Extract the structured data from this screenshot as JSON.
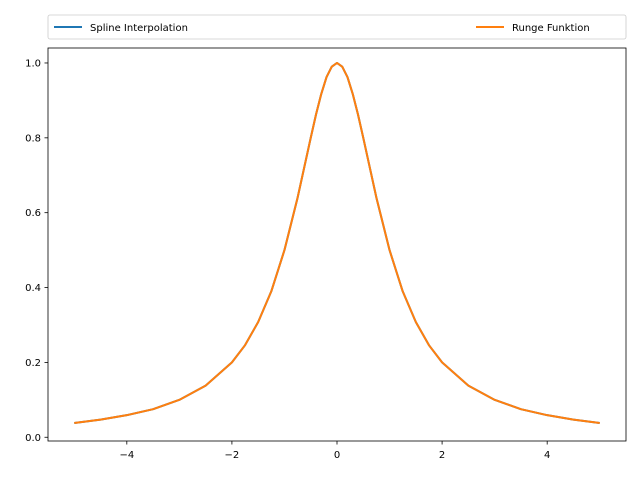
{
  "chart_data": {
    "type": "line",
    "title": "",
    "xlabel": "",
    "ylabel": "",
    "xlim": [
      -5.5,
      5.5
    ],
    "ylim": [
      -0.0,
      1.05
    ],
    "xticks": [
      -4,
      -2,
      0,
      2,
      4
    ],
    "yticks": [
      0.0,
      0.2,
      0.4,
      0.6,
      0.8,
      1.0
    ],
    "xtick_labels": [
      "−4",
      "−2",
      "0",
      "2",
      "4"
    ],
    "ytick_labels": [
      "0.0",
      "0.2",
      "0.4",
      "0.6",
      "0.8",
      "1.0"
    ],
    "grid": false,
    "legend": {
      "placement": "above-plot, expanded across width",
      "entries": [
        "Spline Interpolation",
        "Runge Funktion"
      ]
    },
    "x": [
      -5.0,
      -4.5,
      -4.0,
      -3.5,
      -3.0,
      -2.5,
      -2.0,
      -1.75,
      -1.5,
      -1.25,
      -1.0,
      -0.75,
      -0.5,
      -0.4,
      -0.3,
      -0.2,
      -0.1,
      0.0,
      0.1,
      0.2,
      0.3,
      0.4,
      0.5,
      0.75,
      1.0,
      1.25,
      1.5,
      1.75,
      2.0,
      2.5,
      3.0,
      3.5,
      4.0,
      4.5,
      5.0
    ],
    "series": [
      {
        "name": "Spline Interpolation",
        "color": "#1f77b4",
        "values": [
          0.038,
          0.047,
          0.059,
          0.075,
          0.1,
          0.138,
          0.2,
          0.246,
          0.308,
          0.39,
          0.5,
          0.64,
          0.8,
          0.862,
          0.917,
          0.962,
          0.99,
          1.0,
          0.99,
          0.962,
          0.917,
          0.862,
          0.8,
          0.64,
          0.5,
          0.39,
          0.308,
          0.246,
          0.2,
          0.138,
          0.1,
          0.075,
          0.059,
          0.047,
          0.038
        ]
      },
      {
        "name": "Runge Funktion",
        "color": "#ff7f0e",
        "values": [
          0.038,
          0.047,
          0.059,
          0.075,
          0.1,
          0.138,
          0.2,
          0.246,
          0.308,
          0.39,
          0.5,
          0.64,
          0.8,
          0.862,
          0.917,
          0.962,
          0.99,
          1.0,
          0.99,
          0.962,
          0.917,
          0.862,
          0.8,
          0.64,
          0.5,
          0.39,
          0.308,
          0.246,
          0.2,
          0.138,
          0.1,
          0.075,
          0.059,
          0.047,
          0.038
        ]
      }
    ]
  }
}
